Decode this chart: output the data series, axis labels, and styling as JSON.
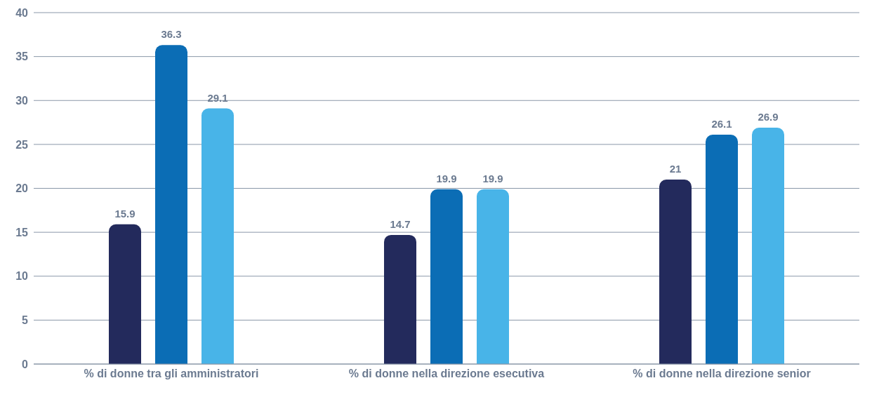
{
  "chart_data": {
    "type": "bar",
    "categories": [
      "% di donne tra gli amministratori",
      "% di donne nella direzione esecutiva",
      "% di donne nella direzione senior"
    ],
    "series": [
      {
        "color": "#232a5c",
        "values": [
          15.9,
          14.7,
          21
        ]
      },
      {
        "color": "#0b6db5",
        "values": [
          36.3,
          19.9,
          26.1
        ]
      },
      {
        "color": "#48b4e8",
        "values": [
          29.1,
          19.9,
          26.9
        ]
      }
    ],
    "ylim": [
      0,
      40
    ],
    "yticks": [
      0,
      5,
      10,
      15,
      20,
      25,
      30,
      35,
      40
    ],
    "grid": "y",
    "data_labels": true,
    "legend": false
  }
}
